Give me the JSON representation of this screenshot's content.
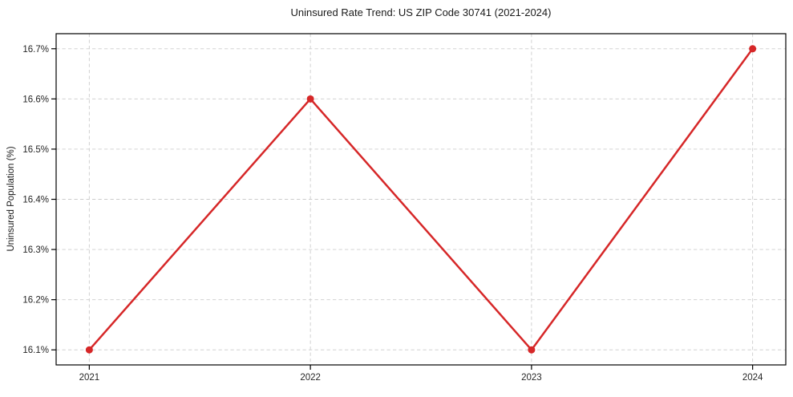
{
  "page": {
    "background_color": "#ffffff"
  },
  "chart_data": {
    "type": "line",
    "title": "Uninsured Rate Trend: US ZIP Code 30741 (2021-2024)",
    "xlabel": "",
    "ylabel": "Uninsured Population (%)",
    "x": [
      2021,
      2022,
      2023,
      2024
    ],
    "series": [
      {
        "name": "Uninsured Rate",
        "values": [
          16.1,
          16.6,
          16.1,
          16.7
        ],
        "color": "#d62728",
        "marker": "circle",
        "line_width": 2.5,
        "marker_radius": 4.5
      }
    ],
    "xlim": [
      2020.85,
      2024.15
    ],
    "ylim": [
      16.07,
      16.73
    ],
    "xticks": [
      2021,
      2022,
      2023,
      2024
    ],
    "xtick_labels": [
      "2021",
      "2022",
      "2023",
      "2024"
    ],
    "yticks": [
      16.1,
      16.2,
      16.3,
      16.4,
      16.5,
      16.6,
      16.7
    ],
    "ytick_labels": [
      "16.1%",
      "16.2%",
      "16.3%",
      "16.4%",
      "16.5%",
      "16.6%",
      "16.7%"
    ],
    "grid": true,
    "grid_color": "#cccccc",
    "grid_style": "dashed",
    "axis_color": "#000000",
    "tick_color": "#262626",
    "text_color": "#262626",
    "legend": "none"
  }
}
